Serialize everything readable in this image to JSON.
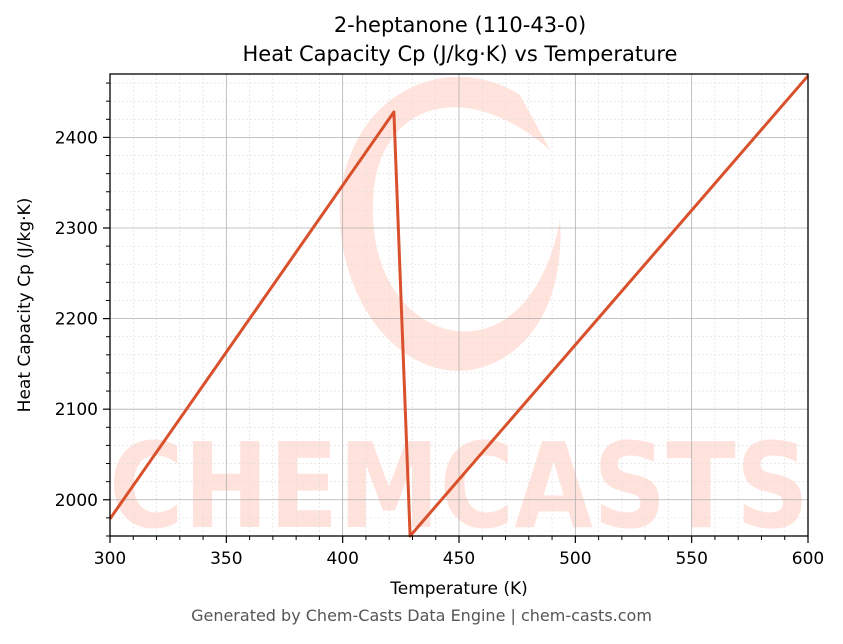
{
  "chart_data": {
    "type": "line",
    "title": "2-heptanone (110-43-0)",
    "subtitle": "Heat Capacity Cp (J/kg·K) vs Temperature",
    "xlabel": "Temperature (K)",
    "ylabel": "Heat Capacity Cp (J/kg·K)",
    "xlim": [
      300,
      600
    ],
    "ylim": [
      1960,
      2470
    ],
    "xticks": [
      300,
      350,
      400,
      450,
      500,
      550,
      600
    ],
    "yticks": [
      2000,
      2100,
      2200,
      2300,
      2400
    ],
    "grid": true,
    "legend": "none",
    "series": [
      {
        "color": "#d9512c",
        "x": [
          300,
          422,
          429,
          600
        ],
        "y": [
          1979,
          2428,
          1960,
          2468
        ]
      }
    ]
  },
  "watermark": {
    "text": "CHEMCASTS",
    "color": "#ffd9d0"
  },
  "footer": "Generated by Chem-Casts Data Engine | chem-casts.com"
}
